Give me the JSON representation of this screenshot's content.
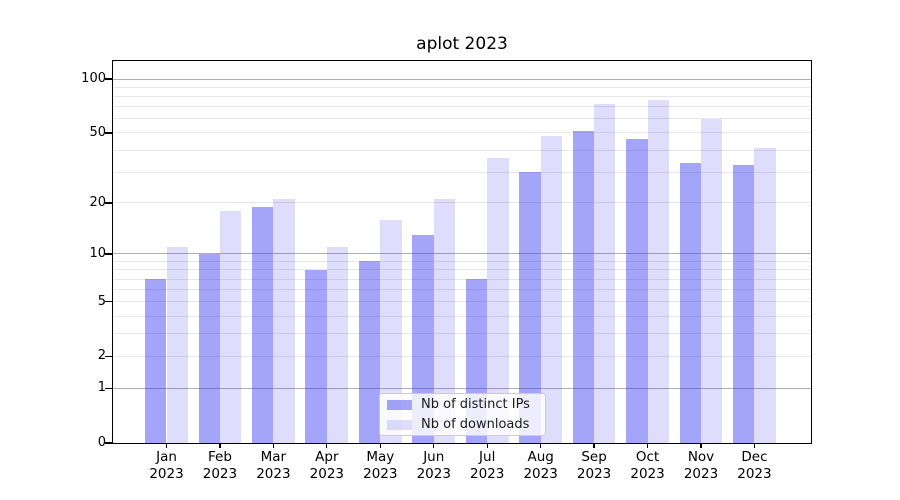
{
  "title": "aplot 2023",
  "x_axis": {
    "months": [
      "Jan",
      "Feb",
      "Mar",
      "Apr",
      "May",
      "Jun",
      "Jul",
      "Aug",
      "Sep",
      "Oct",
      "Nov",
      "Dec"
    ],
    "year": "2023"
  },
  "y_axis": {
    "tick_labels": [
      "0",
      "1",
      "2",
      "5",
      "10",
      "20",
      "50",
      "100"
    ]
  },
  "legend": {
    "items": [
      {
        "label": "Nb of distinct IPs"
      },
      {
        "label": "Nb of downloads"
      }
    ]
  },
  "colors": {
    "bar_base": "#3030ee",
    "dark_alpha": 0.44,
    "light_alpha": 0.16,
    "grid_major": "#b0b0b0",
    "grid_minor": "#e8e8e8"
  },
  "chart_data": {
    "type": "bar",
    "title": "aplot 2023",
    "categories": [
      "Jan 2023",
      "Feb 2023",
      "Mar 2023",
      "Apr 2023",
      "May 2023",
      "Jun 2023",
      "Jul 2023",
      "Aug 2023",
      "Sep 2023",
      "Oct 2023",
      "Nov 2023",
      "Dec 2023"
    ],
    "series": [
      {
        "name": "Nb of distinct IPs",
        "color": "#3030ee",
        "alpha": 0.44,
        "values": [
          7,
          10,
          19,
          8,
          9,
          13,
          7,
          30,
          51,
          46,
          34,
          33
        ]
      },
      {
        "name": "Nb of downloads",
        "color": "#3030ee",
        "alpha": 0.16,
        "values": [
          11,
          18,
          21,
          11,
          16,
          21,
          36,
          48,
          73,
          76,
          60,
          41
        ]
      }
    ],
    "xlabel": "",
    "ylabel": "",
    "yscale": "log1p",
    "y_ticks": [
      0,
      1,
      2,
      5,
      10,
      20,
      50,
      100
    ],
    "y_gridlines_major": [
      1,
      10,
      100
    ],
    "y_gridlines_minor": [
      2,
      3,
      4,
      5,
      6,
      7,
      8,
      9,
      20,
      30,
      40,
      50,
      60,
      70,
      80,
      90
    ],
    "ylim": [
      0,
      126
    ],
    "grid": true,
    "legend_position": "lower center"
  }
}
